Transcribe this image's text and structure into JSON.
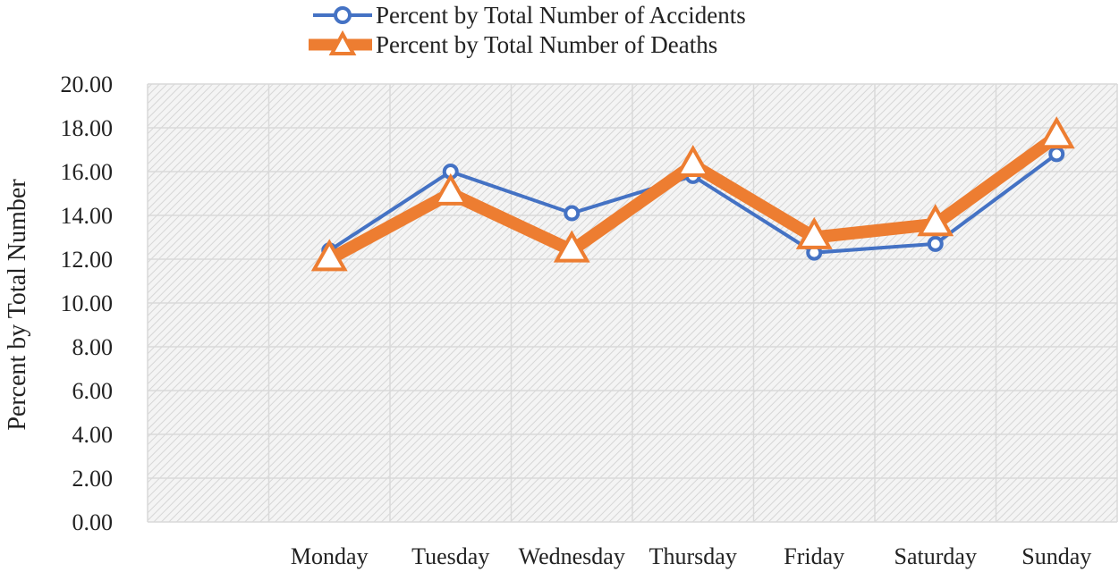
{
  "chart_data": {
    "type": "line",
    "title": "",
    "xlabel": "",
    "ylabel": "Percent by Total Number",
    "categories": [
      "Monday",
      "Tuesday",
      "Wednesday",
      "Thursday",
      "Friday",
      "Saturday",
      "Sunday"
    ],
    "ylim": [
      0,
      20
    ],
    "yticks": [
      "0.00",
      "2.00",
      "4.00",
      "6.00",
      "8.00",
      "10.00",
      "12.00",
      "14.00",
      "16.00",
      "18.00",
      "20.00"
    ],
    "grid": true,
    "legend_position": "top",
    "series": [
      {
        "name": "Percent by Total Number of Accidents",
        "color": "#4472C4",
        "marker": "circle",
        "values": [
          12.4,
          16.0,
          14.1,
          15.8,
          12.3,
          12.7,
          16.8
        ]
      },
      {
        "name": "Percent by Total Number of Deaths",
        "color": "#ED7D31",
        "marker": "triangle",
        "values": [
          12.0,
          15.0,
          12.4,
          16.3,
          13.0,
          13.6,
          17.6
        ]
      }
    ]
  }
}
